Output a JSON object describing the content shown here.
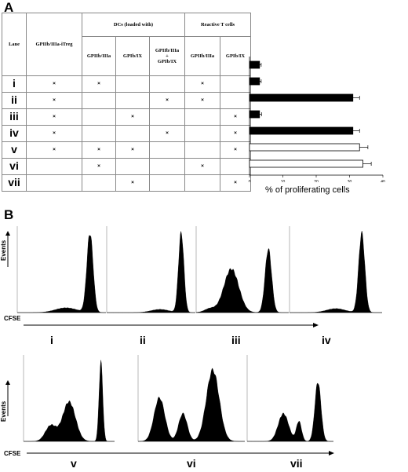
{
  "panel_a_label": "A",
  "panel_b_label": "B",
  "table": {
    "lane_header": "Lane",
    "treg_header": "GPIIb/IIIa-iTreg",
    "dcs_header": "DCs (loaded with)",
    "reactive_header": "Reactive T cells",
    "dcs_sub": [
      "GPIIb/IIIa",
      "GPIb/IX",
      "GPIIb/IIIa\n+\nGPIb/IX"
    ],
    "reactive_sub": [
      "GPIIb/IIIa",
      "GPIb/IX"
    ],
    "mark": "×",
    "rows": [
      {
        "lane": "i",
        "cells": [
          true,
          true,
          false,
          false,
          true,
          false
        ]
      },
      {
        "lane": "ii",
        "cells": [
          true,
          false,
          false,
          true,
          true,
          false
        ]
      },
      {
        "lane": "iii",
        "cells": [
          true,
          false,
          true,
          false,
          false,
          true
        ]
      },
      {
        "lane": "iv",
        "cells": [
          true,
          false,
          false,
          true,
          false,
          true
        ]
      },
      {
        "lane": "v",
        "cells": [
          true,
          true,
          true,
          false,
          false,
          true
        ]
      },
      {
        "lane": "vi",
        "cells": [
          false,
          true,
          false,
          false,
          true,
          false
        ]
      },
      {
        "lane": "vii",
        "cells": [
          false,
          false,
          true,
          false,
          false,
          true
        ]
      }
    ]
  },
  "chart_data": {
    "type": "bar",
    "orientation": "horizontal",
    "categories": [
      "i",
      "ii",
      "iii",
      "iv",
      "v",
      "vi",
      "vii"
    ],
    "values": [
      3,
      3,
      31,
      3,
      31,
      33,
      34
    ],
    "errors": [
      0.5,
      0.5,
      2,
      0.6,
      2,
      2.5,
      2.5
    ],
    "fills": [
      "#000000",
      "#000000",
      "#000000",
      "#000000",
      "#000000",
      "#ffffff",
      "#ffffff"
    ],
    "xlim": [
      0,
      40
    ],
    "xticks": [
      "0",
      "10",
      "20",
      "30",
      "40"
    ],
    "xlabel": "% of proliferating cells"
  },
  "histograms": {
    "ylabel": "Events",
    "xlabel": "CFSE",
    "labels": [
      "i",
      "ii",
      "iii",
      "iv",
      "v",
      "vi",
      "vii"
    ]
  }
}
